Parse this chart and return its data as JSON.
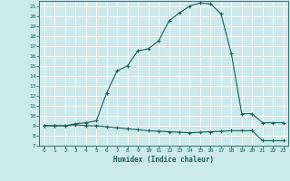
{
  "xlabel": "Humidex (Indice chaleur)",
  "bg_color": "#cce9ec",
  "grid_color": "#ffffff",
  "line_color": "#1a5f5a",
  "xlim": [
    -0.5,
    23.5
  ],
  "ylim": [
    7,
    21.5
  ],
  "x_ticks": [
    0,
    1,
    2,
    3,
    4,
    5,
    6,
    7,
    8,
    9,
    10,
    11,
    12,
    13,
    14,
    15,
    16,
    17,
    18,
    19,
    20,
    21,
    22,
    23
  ],
  "y_ticks": [
    7,
    8,
    9,
    10,
    11,
    12,
    13,
    14,
    15,
    16,
    17,
    18,
    19,
    20,
    21
  ],
  "line1_x": [
    0,
    1,
    2,
    3,
    4,
    5,
    6,
    7,
    8,
    9,
    10,
    11,
    12,
    13,
    14,
    15,
    16,
    17,
    18,
    19,
    20,
    21,
    22,
    23
  ],
  "line1_y": [
    9.0,
    9.0,
    9.0,
    9.2,
    9.3,
    9.5,
    12.3,
    14.5,
    15.0,
    16.5,
    16.7,
    17.5,
    19.5,
    20.3,
    21.0,
    21.3,
    21.2,
    20.2,
    16.2,
    10.2,
    10.2,
    9.3,
    9.3,
    9.3
  ],
  "line2_x": [
    0,
    1,
    2,
    3,
    4,
    5,
    6,
    7,
    8,
    9,
    10,
    11,
    12,
    13,
    14,
    15,
    16,
    17,
    18,
    19,
    20,
    21,
    22,
    23
  ],
  "line2_y": [
    9.0,
    9.0,
    9.0,
    9.1,
    9.0,
    9.0,
    8.9,
    8.8,
    8.7,
    8.6,
    8.5,
    8.45,
    8.4,
    8.35,
    8.3,
    8.35,
    8.4,
    8.45,
    8.5,
    8.5,
    8.5,
    7.5,
    7.5,
    7.5
  ]
}
